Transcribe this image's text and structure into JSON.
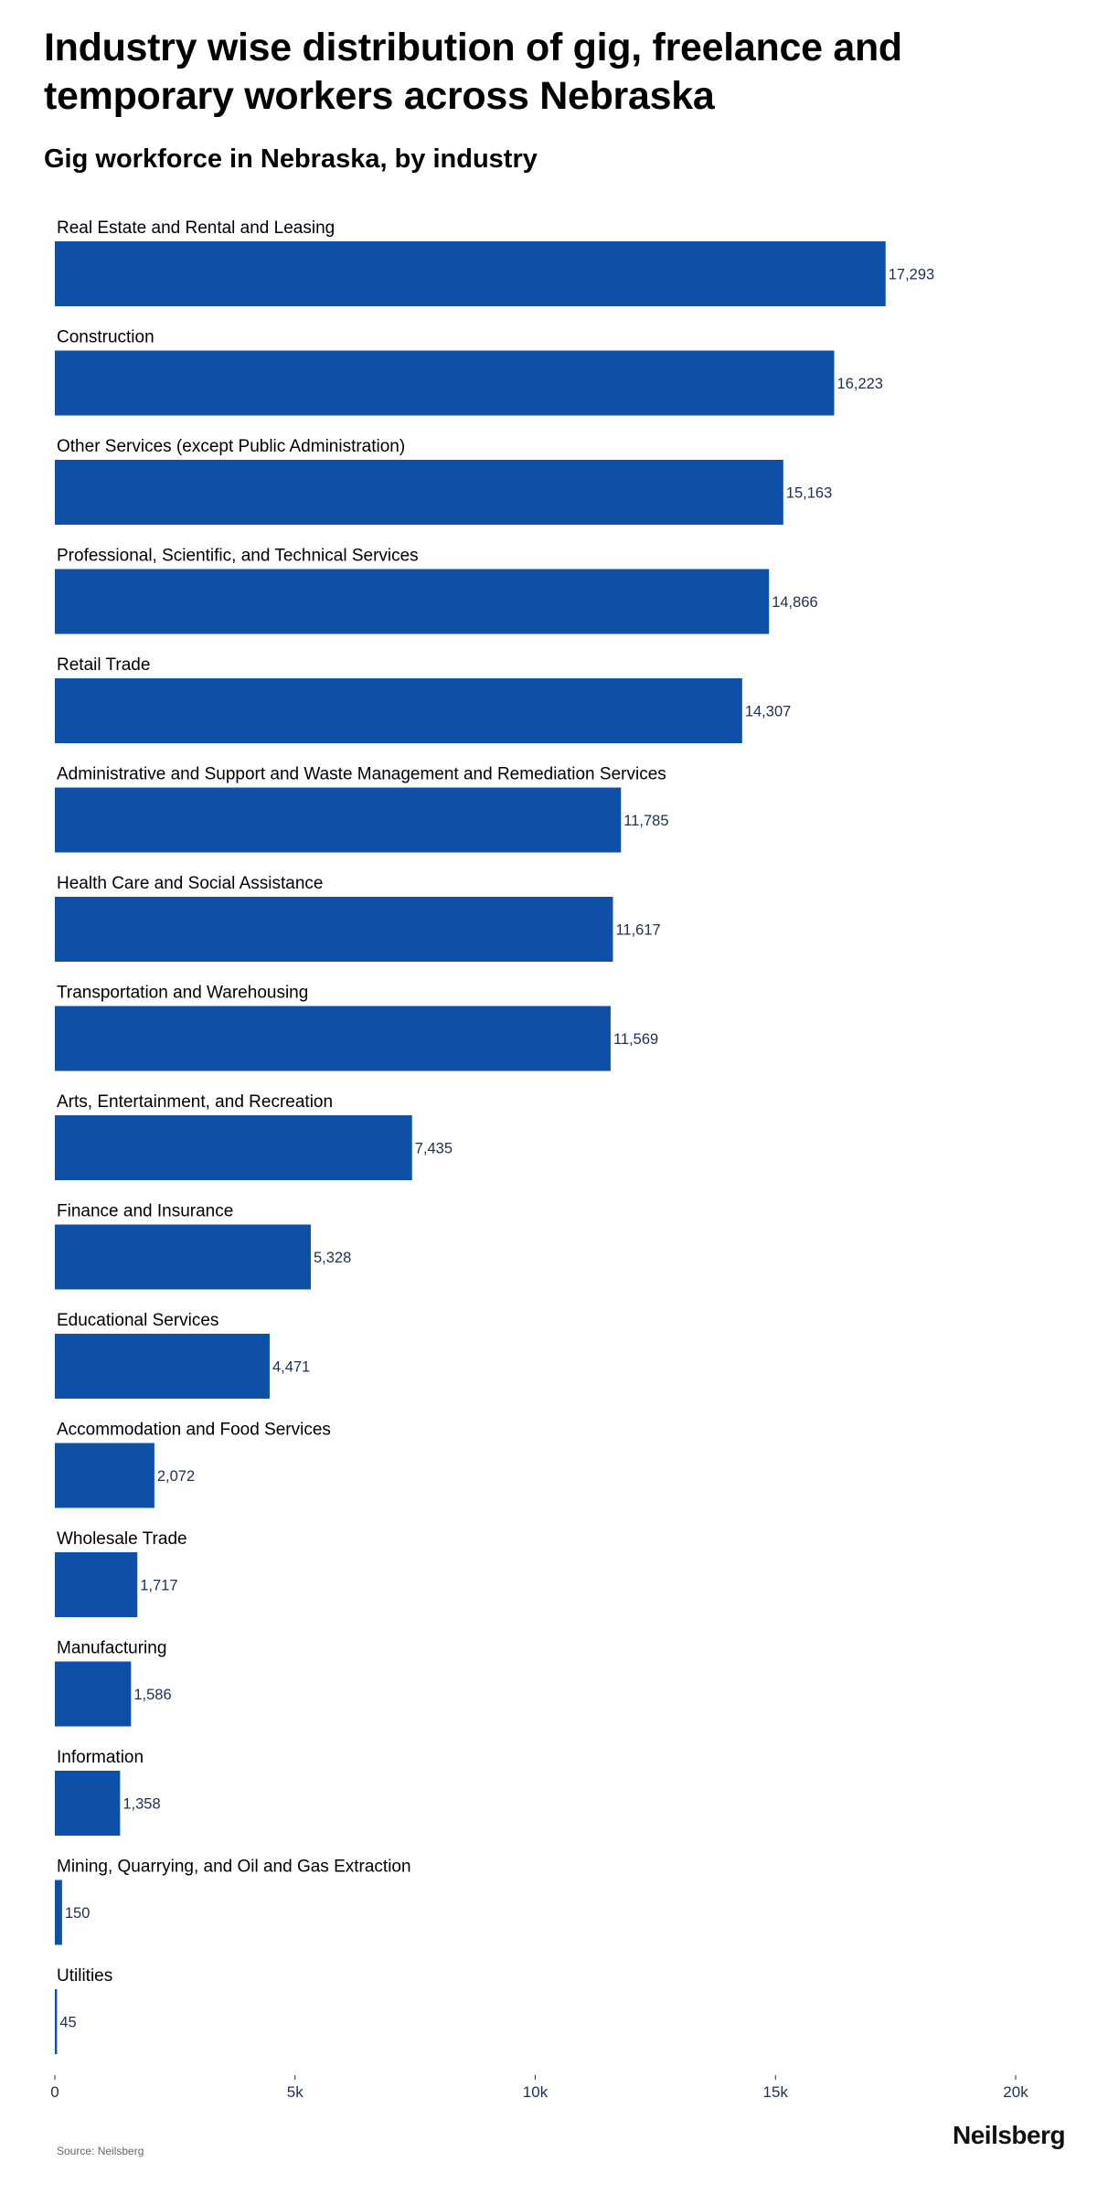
{
  "title": "Industry wise distribution of gig, freelance and temporary workers across Nebraska",
  "subtitle": "Gig workforce in Nebraska, by industry",
  "source": "Source: Neilsberg",
  "brand": "Neilsberg",
  "colors": {
    "bar": "#0e4fa8",
    "value_text": "#1f2f52",
    "tick": "#1f2f52"
  },
  "chart_data": {
    "type": "bar",
    "orientation": "horizontal",
    "title": "Gig workforce in Nebraska, by industry",
    "categories": [
      "Real Estate and Rental and Leasing",
      "Construction",
      "Other Services (except Public Administration)",
      "Professional, Scientific, and Technical Services",
      "Retail Trade",
      "Administrative and Support and Waste Management and Remediation Services",
      "Health Care and Social Assistance",
      "Transportation and Warehousing",
      "Arts, Entertainment, and Recreation",
      "Finance and Insurance",
      "Educational Services",
      "Accommodation and Food Services",
      "Wholesale Trade",
      "Manufacturing",
      "Information",
      "Mining, Quarrying, and Oil and Gas Extraction",
      "Utilities"
    ],
    "values": [
      17293,
      16223,
      15163,
      14866,
      14307,
      11785,
      11617,
      11569,
      7435,
      5328,
      4471,
      2072,
      1717,
      1586,
      1358,
      150,
      45
    ],
    "value_labels": [
      "17,293",
      "16,223",
      "15,163",
      "14,866",
      "14,307",
      "11,785",
      "11,617",
      "11,569",
      "7,435",
      "5,328",
      "4,471",
      "2,072",
      "1,717",
      "1,586",
      "1,358",
      "150",
      "45"
    ],
    "xlim": [
      0,
      20000
    ],
    "x_ticks": [
      0,
      5000,
      10000,
      15000,
      20000
    ],
    "x_tick_labels": [
      "0",
      "5k",
      "10k",
      "15k",
      "20k"
    ],
    "grid": false,
    "legend": "none"
  }
}
